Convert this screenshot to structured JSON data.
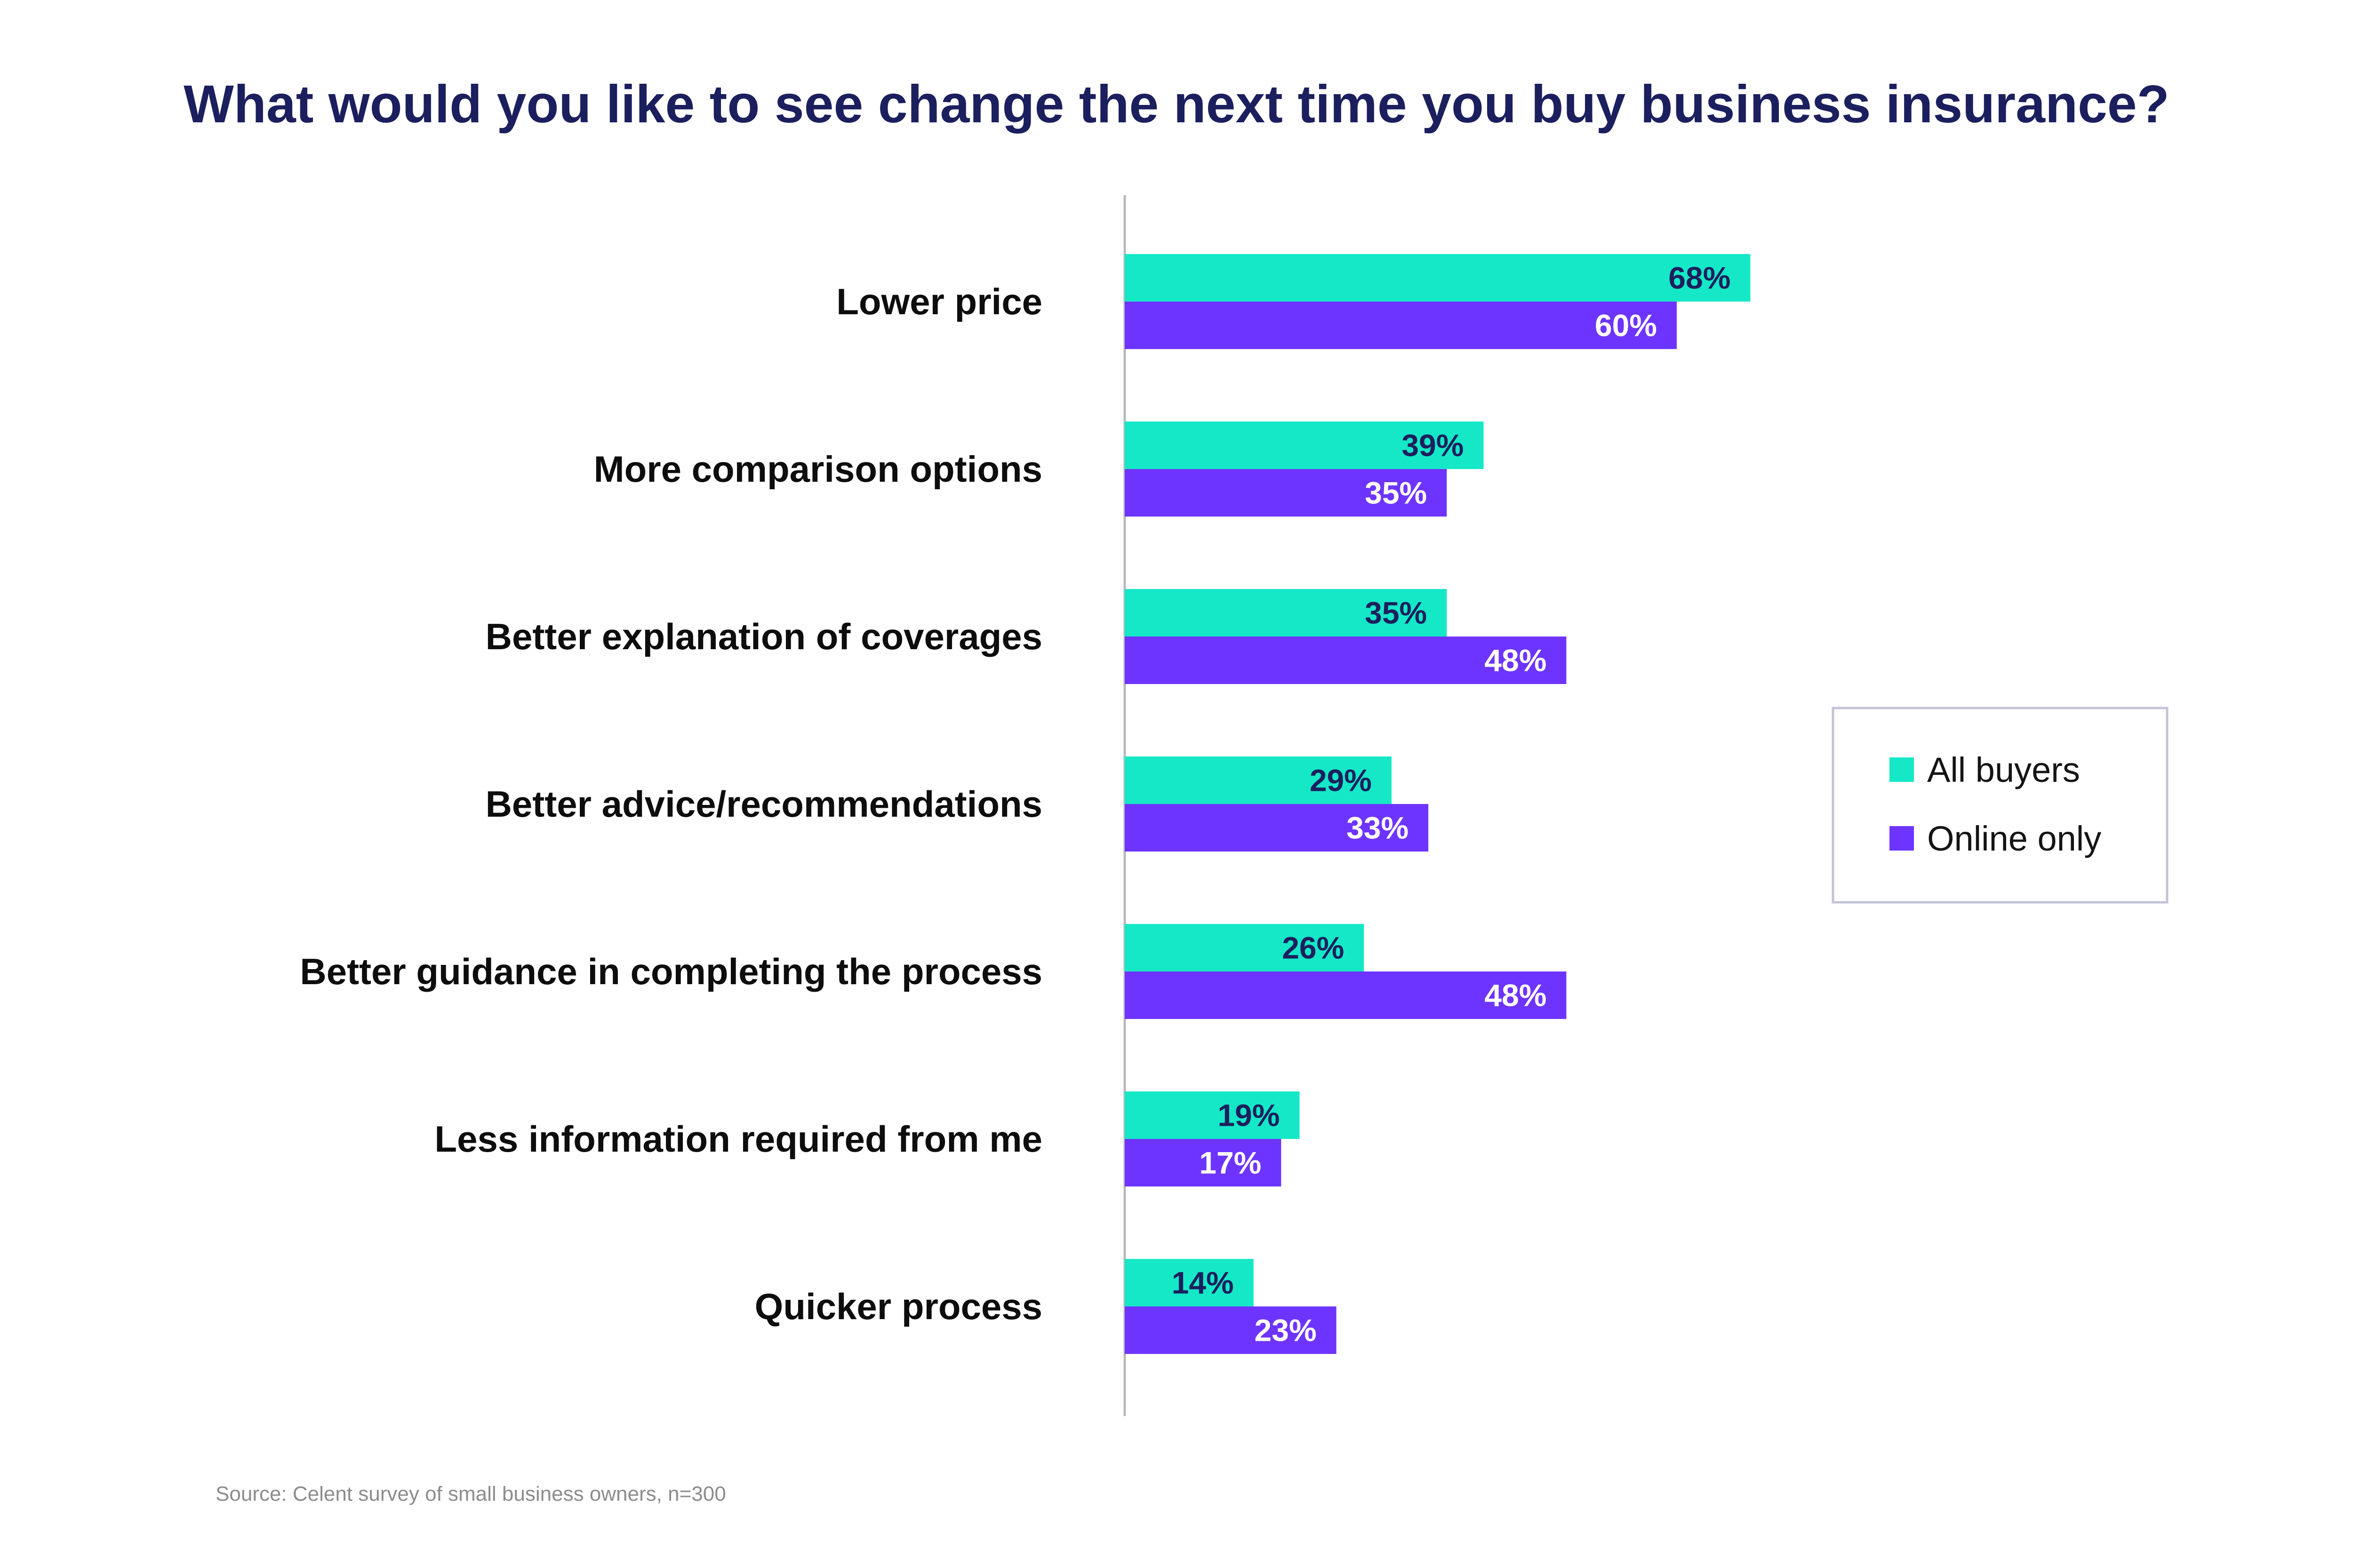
{
  "colors": {
    "all_buyers": "#15e8c7",
    "online_only": "#6e34ff",
    "title": "#1c1f5e",
    "axis": "#b8b8b8",
    "legend_border": "#c3c3d6",
    "label_on_teal": "#1c1f5e",
    "label_on_purple": "#ffffff"
  },
  "chart_data": {
    "type": "bar",
    "orientation": "horizontal",
    "title": "What would you like to see change the next time you buy business insurance?",
    "categories": [
      "Lower price",
      "More comparison options",
      "Better explanation of coverages",
      "Better advice/recommendations",
      "Better guidance in completing the process",
      "Less information required from me",
      "Quicker process"
    ],
    "series": [
      {
        "name": "All buyers",
        "values": [
          68,
          39,
          35,
          29,
          26,
          19,
          14
        ]
      },
      {
        "name": "Online only",
        "values": [
          60,
          35,
          48,
          33,
          48,
          17,
          23
        ]
      }
    ],
    "value_labels": {
      "All buyers": [
        "68%",
        "39%",
        "35%",
        "29%",
        "26%",
        "19%",
        "14%"
      ],
      "Online only": [
        "60%",
        "35%",
        "48%",
        "33%",
        "48%",
        "17%",
        "23%"
      ]
    },
    "unit": "%",
    "xlim": [
      0,
      100
    ],
    "xlabel": "",
    "ylabel": "",
    "grid": false,
    "legend_position": "right"
  },
  "source": "Source: Celent survey of small business owners, n=300"
}
